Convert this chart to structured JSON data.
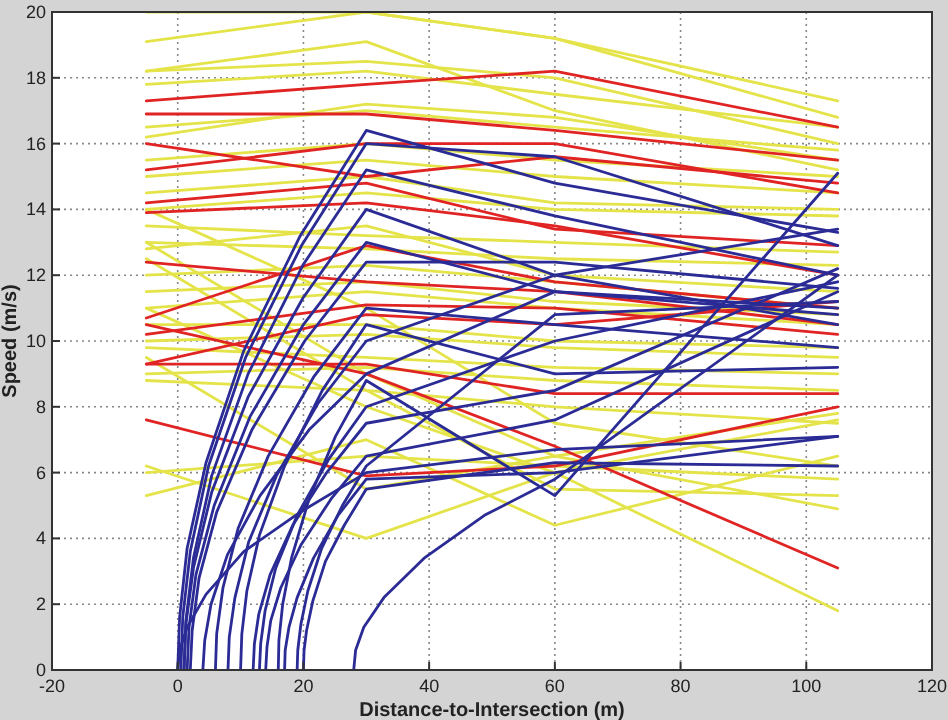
{
  "chart_data": {
    "type": "line",
    "xlabel": "Distance-to-Intersection (m)",
    "ylabel": "Speed (m/s)",
    "xlim": [
      -20,
      120
    ],
    "xticks": [
      -20,
      0,
      20,
      40,
      60,
      80,
      100,
      120
    ],
    "ylim": [
      0,
      20
    ],
    "yticks": [
      0,
      2,
      4,
      6,
      8,
      10,
      12,
      14,
      16,
      18,
      20
    ],
    "grid": true,
    "x": [
      -5,
      30,
      60,
      105
    ],
    "series": [
      {
        "color": "#e4e44a",
        "values": [
          19.1,
          20,
          19.2,
          17.3
        ]
      },
      {
        "color": "#e4e44a",
        "values": [
          20,
          20,
          19.2,
          16.8
        ]
      },
      {
        "color": "#e4e44a",
        "values": [
          18.2,
          19.1,
          17,
          15.2
        ]
      },
      {
        "color": "#e4e44a",
        "values": [
          18.2,
          18.5,
          18,
          16
        ]
      },
      {
        "color": "#e4e44a",
        "values": [
          17.8,
          18.2,
          17.5,
          16.5
        ]
      },
      {
        "color": "#e4e44a",
        "values": [
          16.5,
          17,
          16.5,
          15.8
        ]
      },
      {
        "color": "#e4e44a",
        "values": [
          16.2,
          17.2,
          16.8,
          15.5
        ]
      },
      {
        "color": "#e4e44a",
        "values": [
          15.5,
          16,
          15.5,
          15
        ]
      },
      {
        "color": "#e4e44a",
        "values": [
          15,
          15.5,
          15,
          14.5
        ]
      },
      {
        "color": "#e4e44a",
        "values": [
          14.5,
          15,
          14.2,
          14
        ]
      },
      {
        "color": "#e4e44a",
        "values": [
          14,
          14.5,
          14,
          13.8
        ]
      },
      {
        "color": "#e4e44a",
        "values": [
          13.5,
          13.2,
          13,
          12.7
        ]
      },
      {
        "color": "#e4e44a",
        "values": [
          13,
          12.8,
          12.5,
          12.3
        ]
      },
      {
        "color": "#e4e44a",
        "values": [
          12.8,
          13.5,
          12,
          11.5
        ]
      },
      {
        "color": "#e4e44a",
        "values": [
          12,
          12.3,
          11.8,
          11
        ]
      },
      {
        "color": "#e4e44a",
        "values": [
          11.5,
          11.8,
          11.2,
          10.8
        ]
      },
      {
        "color": "#e4e44a",
        "values": [
          11,
          11.5,
          11,
          10.5
        ]
      },
      {
        "color": "#e4e44a",
        "values": [
          10.5,
          10.5,
          10,
          9.8
        ]
      },
      {
        "color": "#e4e44a",
        "values": [
          10,
          10.2,
          9.8,
          9.5
        ]
      },
      {
        "color": "#e4e44a",
        "values": [
          9.8,
          9.5,
          9.2,
          9
        ]
      },
      {
        "color": "#e4e44a",
        "values": [
          9,
          9.2,
          8.8,
          8.5
        ]
      },
      {
        "color": "#e4e44a",
        "values": [
          8.8,
          8.5,
          8,
          7.5
        ]
      },
      {
        "color": "#e4e44a",
        "values": [
          14,
          11,
          7.5,
          6.2
        ]
      },
      {
        "color": "#e4e44a",
        "values": [
          12.5,
          8.5,
          5.5,
          5.3
        ]
      },
      {
        "color": "#e4e44a",
        "values": [
          6.2,
          4,
          6,
          7.6
        ]
      },
      {
        "color": "#e4e44a",
        "values": [
          5.3,
          7,
          4.4,
          6.5
        ]
      },
      {
        "color": "#e4e44a",
        "values": [
          6,
          6.5,
          6.2,
          5.8
        ]
      },
      {
        "color": "#e4e44a",
        "values": [
          11,
          8,
          6,
          1.8
        ]
      },
      {
        "color": "#e4e44a",
        "values": [
          13,
          9,
          6.5,
          4.9
        ]
      },
      {
        "color": "#e4e44a",
        "values": [
          9.5,
          5.5,
          6.5,
          7.8
        ]
      },
      {
        "color": "#e02424",
        "values": [
          17.3,
          17.8,
          18.2,
          16.5
        ]
      },
      {
        "color": "#e02424",
        "values": [
          16.9,
          16.9,
          16.4,
          15.5
        ]
      },
      {
        "color": "#e02424",
        "values": [
          16,
          15,
          15.6,
          14.8
        ]
      },
      {
        "color": "#e02424",
        "values": [
          15.2,
          16,
          16,
          14.5
        ]
      },
      {
        "color": "#e02424",
        "values": [
          14.2,
          14.8,
          13.4,
          12.9
        ]
      },
      {
        "color": "#e02424",
        "values": [
          13.9,
          14.2,
          13.5,
          12
        ]
      },
      {
        "color": "#e02424",
        "values": [
          12.4,
          11.8,
          11.5,
          10.5
        ]
      },
      {
        "color": "#e02424",
        "values": [
          10.7,
          12.9,
          11.8,
          11
        ]
      },
      {
        "color": "#e02424",
        "values": [
          10.2,
          11.1,
          11,
          10.2
        ]
      },
      {
        "color": "#e02424",
        "values": [
          9.3,
          9.3,
          8.4,
          8.4
        ]
      },
      {
        "color": "#e02424",
        "values": [
          9.3,
          10.8,
          10.5,
          11.2
        ]
      },
      {
        "color": "#e02424",
        "values": [
          7.6,
          5.9,
          6.2,
          8
        ]
      },
      {
        "color": "#e02424",
        "values": [
          10.5,
          9,
          6.8,
          3.1
        ]
      },
      {
        "color": "#2b2b96",
        "x": [
          0,
          0.3,
          1.5,
          4.5,
          10.5,
          19.5,
          30,
          60,
          105
        ],
        "values": [
          0,
          1.6,
          3.7,
          6.3,
          9.7,
          13.2,
          16.4,
          14.8,
          13.3
        ]
      },
      {
        "color": "#2b2b96",
        "x": [
          0.5,
          0.8,
          2,
          4.9,
          10.8,
          19.7,
          30,
          60,
          105
        ],
        "values": [
          0,
          1.6,
          3.6,
          6.2,
          9.5,
          12.9,
          16,
          15.6,
          12.9
        ]
      },
      {
        "color": "#2b2b96",
        "x": [
          1,
          1.3,
          2.5,
          5.4,
          11.2,
          19.9,
          30,
          60,
          105
        ],
        "values": [
          0,
          1.5,
          3.4,
          5.9,
          9,
          12.3,
          15.2,
          13.8,
          12
        ]
      },
      {
        "color": "#2b2b96",
        "x": [
          1,
          1.3,
          2.5,
          5.4,
          11.2,
          19.9,
          30,
          60,
          105
        ],
        "values": [
          0,
          1.4,
          3.1,
          5.4,
          8.3,
          11.3,
          14,
          12,
          13.4
        ]
      },
      {
        "color": "#2b2b96",
        "x": [
          1.5,
          1.8,
          2.9,
          5.8,
          11.5,
          20,
          30,
          60,
          105
        ],
        "values": [
          0,
          1.3,
          2.9,
          5,
          7.7,
          10.5,
          13,
          11.5,
          11
        ]
      },
      {
        "color": "#2b2b96",
        "x": [
          2,
          2.3,
          3.4,
          6.2,
          11.8,
          20.2,
          30,
          60,
          105
        ],
        "values": [
          0,
          1.2,
          2.8,
          4.8,
          7.3,
          10,
          12.4,
          12.4,
          11.6
        ]
      },
      {
        "color": "#2b2b96",
        "x": [
          6,
          6.2,
          7.2,
          9.6,
          14.4,
          21.6,
          30,
          60,
          105
        ],
        "values": [
          0,
          1.1,
          2.5,
          4.3,
          6.5,
          8.9,
          11,
          10.5,
          9.8
        ]
      },
      {
        "color": "#2b2b96",
        "x": [
          10,
          10.2,
          11,
          13,
          17,
          23,
          30,
          60,
          105
        ],
        "values": [
          0,
          1.1,
          2.4,
          4.1,
          6.2,
          8.5,
          10.5,
          9,
          9.2
        ]
      },
      {
        "color": "#2b2b96",
        "x": [
          16,
          16.1,
          16.7,
          18.1,
          20.9,
          25.1,
          30,
          60,
          105
        ],
        "values": [
          0,
          0.9,
          2,
          3.4,
          5.2,
          7.1,
          8.8,
          5.3,
          15.1
        ]
      },
      {
        "color": "#2b2b96",
        "x": [
          12,
          12.2,
          12.9,
          14.7,
          18.3,
          23.7,
          30,
          60,
          105
        ],
        "values": [
          0,
          0.8,
          1.7,
          2.9,
          4.4,
          6,
          7.5,
          8.5,
          12.2
        ]
      },
      {
        "color": "#2b2b96",
        "x": [
          14,
          14.2,
          14.8,
          16.4,
          19.6,
          24.4,
          30,
          60,
          105
        ],
        "values": [
          0,
          0.7,
          1.5,
          2.5,
          3.8,
          5.2,
          6.5,
          7.6,
          11.5
        ]
      },
      {
        "color": "#2b2b96",
        "x": [
          17,
          17.1,
          17.7,
          19,
          21.6,
          25.5,
          30,
          60,
          105
        ],
        "values": [
          0,
          0.6,
          1.3,
          2.2,
          3.4,
          4.7,
          5.8,
          6,
          7.1
        ]
      },
      {
        "color": "#2b2b96",
        "x": [
          20,
          20.1,
          20.5,
          21.5,
          23.5,
          26.5,
          30,
          60,
          105
        ],
        "values": [
          0,
          0.6,
          1.2,
          2.1,
          3.3,
          4.4,
          5.5,
          6.3,
          6.2
        ]
      },
      {
        "color": "#2b2b96",
        "x": [
          28,
          28.3,
          29.6,
          32.8,
          39.2,
          48.8,
          60,
          105
        ],
        "values": [
          0,
          0.6,
          1.3,
          2.2,
          3.4,
          4.7,
          5.8,
          12
        ]
      },
      {
        "color": "#2b2b96",
        "x": [
          4,
          4.3,
          5.3,
          7.9,
          13.1,
          20.9,
          30,
          60,
          105
        ],
        "values": [
          0,
          0.9,
          2,
          3.5,
          5.3,
          7.3,
          9,
          11.5,
          10.8
        ]
      },
      {
        "color": "#2b2b96",
        "x": [
          8,
          8.2,
          9.1,
          11.3,
          15.7,
          22.3,
          30,
          60,
          105
        ],
        "values": [
          0,
          1,
          2.2,
          3.9,
          5.9,
          8.1,
          10,
          12,
          10.5
        ]
      },
      {
        "color": "#2b2b96",
        "x": [
          13,
          13.2,
          13.9,
          15.6,
          19,
          24,
          30,
          60,
          105
        ],
        "values": [
          0,
          0.8,
          1.8,
          3.1,
          4.7,
          6.4,
          8,
          10,
          11.8
        ]
      },
      {
        "color": "#2b2b96",
        "x": [
          19,
          19.1,
          19.6,
          20.7,
          22.9,
          26.2,
          30,
          60,
          105
        ],
        "values": [
          0,
          0.6,
          1.4,
          2.4,
          3.7,
          5,
          6.2,
          10.8,
          11.2
        ]
      },
      {
        "color": "#2b2b96",
        "x": [
          0,
          0.3,
          1.5,
          4.5,
          10.5,
          19.5,
          30,
          60,
          105
        ],
        "values": [
          0,
          0.6,
          1.3,
          2.3,
          3.6,
          4.8,
          6,
          6.7,
          7.1
        ]
      }
    ]
  }
}
